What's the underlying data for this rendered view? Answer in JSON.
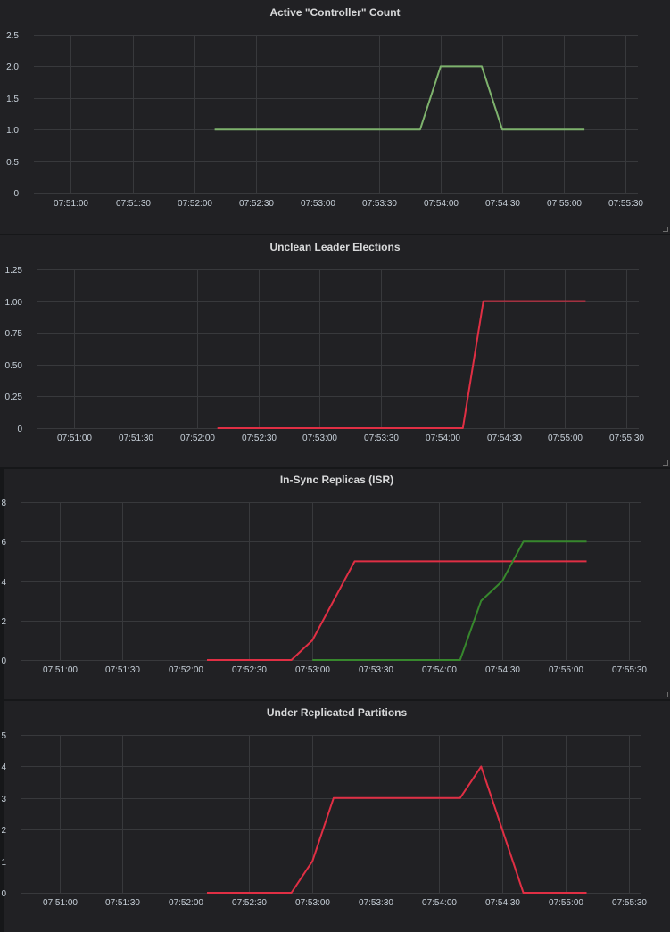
{
  "colors": {
    "background": "#161719",
    "panel": "#212124",
    "grid": "#38393c",
    "text": "#c7d0d9",
    "green_light": "#7eb26d",
    "green_dark": "#37872d",
    "red": "#e02f44"
  },
  "panels": [
    {
      "title": "Active \"Controller\" Count"
    },
    {
      "title": "Unclean Leader Elections"
    },
    {
      "title": "In-Sync Replicas (ISR)"
    },
    {
      "title": "Under Replicated Partitions"
    }
  ],
  "chart_data": [
    {
      "type": "line",
      "title": "Active \"Controller\" Count",
      "xlabel": "",
      "ylabel": "",
      "x_ticks": [
        "07:51:00",
        "07:51:30",
        "07:52:00",
        "07:52:30",
        "07:53:00",
        "07:53:30",
        "07:54:00",
        "07:54:30",
        "07:55:00",
        "07:55:30"
      ],
      "xlim": [
        "07:50:42",
        "07:55:36"
      ],
      "y_ticks": [
        "0",
        "0.5",
        "1.0",
        "1.5",
        "2.0",
        "2.5"
      ],
      "ylim": [
        0,
        2.5
      ],
      "grid": true,
      "series": [
        {
          "color": "#7eb26d",
          "x": [
            "07:52:10",
            "07:53:50",
            "07:54:00",
            "07:54:20",
            "07:54:30",
            "07:55:10"
          ],
          "y": [
            1,
            1,
            2,
            2,
            1,
            1
          ]
        }
      ]
    },
    {
      "type": "line",
      "title": "Unclean Leader Elections",
      "xlabel": "",
      "ylabel": "",
      "x_ticks": [
        "07:51:00",
        "07:51:30",
        "07:52:00",
        "07:52:30",
        "07:53:00",
        "07:53:30",
        "07:54:00",
        "07:54:30",
        "07:55:00",
        "07:55:30"
      ],
      "xlim": [
        "07:50:42",
        "07:55:36"
      ],
      "y_ticks": [
        "0",
        "0.25",
        "0.50",
        "0.75",
        "1.00",
        "1.25"
      ],
      "ylim": [
        0,
        1.25
      ],
      "grid": true,
      "series": [
        {
          "color": "#e02f44",
          "x": [
            "07:52:10",
            "07:54:10",
            "07:54:20",
            "07:55:10"
          ],
          "y": [
            0,
            0,
            1,
            1
          ]
        }
      ]
    },
    {
      "type": "line",
      "title": "In-Sync Replicas (ISR)",
      "xlabel": "",
      "ylabel": "",
      "x_ticks": [
        "07:51:00",
        "07:51:30",
        "07:52:00",
        "07:52:30",
        "07:53:00",
        "07:53:30",
        "07:54:00",
        "07:54:30",
        "07:55:00",
        "07:55:30"
      ],
      "xlim": [
        "07:50:42",
        "07:55:36"
      ],
      "y_ticks": [
        "0",
        "2",
        "4",
        "6",
        "8"
      ],
      "ylim": [
        0,
        8
      ],
      "grid": true,
      "series": [
        {
          "color": "#e02f44",
          "x": [
            "07:52:10",
            "07:52:50",
            "07:53:00",
            "07:53:20",
            "07:55:10"
          ],
          "y": [
            0,
            0,
            1,
            5,
            5
          ]
        },
        {
          "color": "#37872d",
          "x": [
            "07:53:00",
            "07:54:10",
            "07:54:20",
            "07:54:30",
            "07:54:40",
            "07:55:10"
          ],
          "y": [
            0,
            0,
            3,
            4,
            6,
            6
          ]
        }
      ]
    },
    {
      "type": "line",
      "title": "Under Replicated Partitions",
      "xlabel": "",
      "ylabel": "",
      "x_ticks": [
        "07:51:00",
        "07:51:30",
        "07:52:00",
        "07:52:30",
        "07:53:00",
        "07:53:30",
        "07:54:00",
        "07:54:30",
        "07:55:00",
        "07:55:30"
      ],
      "xlim": [
        "07:50:42",
        "07:55:36"
      ],
      "y_ticks": [
        "0",
        "1",
        "2",
        "3",
        "4",
        "5"
      ],
      "ylim": [
        0,
        5
      ],
      "grid": true,
      "series": [
        {
          "color": "#e02f44",
          "x": [
            "07:52:10",
            "07:52:50",
            "07:53:00",
            "07:53:10",
            "07:54:10",
            "07:54:20",
            "07:54:30",
            "07:54:40",
            "07:55:10"
          ],
          "y": [
            0,
            0,
            1,
            3,
            3,
            4,
            2,
            0,
            0
          ]
        }
      ]
    }
  ]
}
